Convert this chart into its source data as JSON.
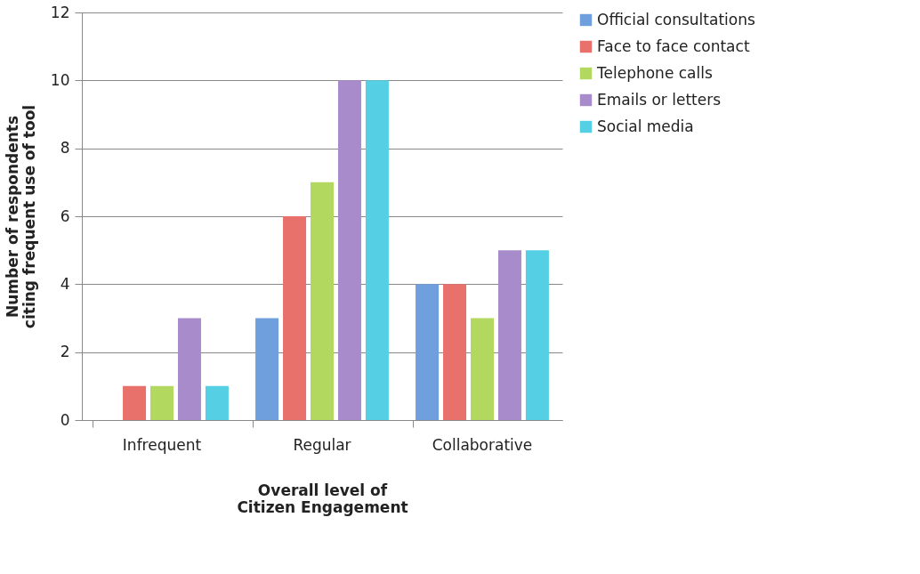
{
  "chart_data": {
    "type": "bar",
    "xlabel": "Overall level of Citizen Engagement",
    "ylabel": "Number of respondents citing frequent use of tool",
    "categories": [
      "Infrequent",
      "Regular",
      "Collaborative"
    ],
    "series": [
      {
        "name": "Official consultations",
        "color": "#6f9fdc",
        "values": [
          0,
          3,
          4
        ]
      },
      {
        "name": "Face to face contact",
        "color": "#e8716b",
        "values": [
          1,
          6,
          4
        ]
      },
      {
        "name": "Telephone calls",
        "color": "#b2d85f",
        "values": [
          1,
          7,
          3
        ]
      },
      {
        "name": "Emails or letters",
        "color": "#a88bcb",
        "values": [
          3,
          10,
          5
        ]
      },
      {
        "name": "Social media",
        "color": "#55cfe4",
        "values": [
          1,
          10,
          5
        ]
      }
    ],
    "ylim": [
      0,
      12
    ],
    "yticks": [
      0,
      2,
      4,
      6,
      8,
      10,
      12
    ],
    "grid": "y",
    "legend": "right"
  }
}
